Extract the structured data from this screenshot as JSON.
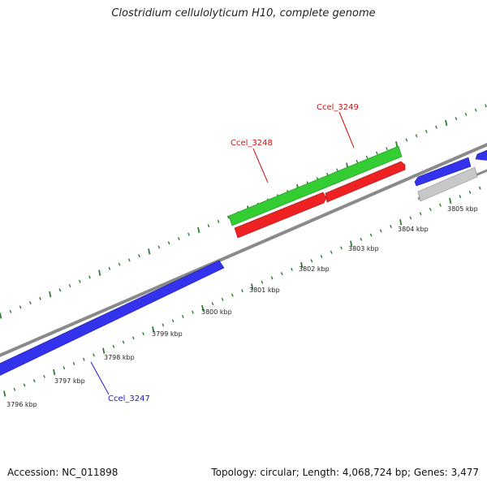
{
  "title": "Clostridium cellulolyticum H10, complete genome",
  "footer": {
    "accession": "Accession: NC_011898",
    "summary": "Topology: circular; Length: 4,068,724 bp; Genes: 3,477"
  },
  "colors": {
    "forward_gene": "#3333ee",
    "reverse_gene": "#ee2222",
    "rna_gene": "#33cc33",
    "other_gene": "#c8c8c8",
    "backbone": "#8a8a8a",
    "tick": "#2e7d32",
    "label_blue": "#1a1acc",
    "label_red": "#cc1111"
  },
  "axis_ticks": [
    {
      "kbp": 3796,
      "label": "3796 kbp"
    },
    {
      "kbp": 3797,
      "label": "3797 kbp"
    },
    {
      "kbp": 3798,
      "label": "3798 kbp"
    },
    {
      "kbp": 3799,
      "label": "3799 kbp"
    },
    {
      "kbp": 3800,
      "label": "3800 kbp"
    },
    {
      "kbp": 3801,
      "label": "3801 kbp"
    },
    {
      "kbp": 3802,
      "label": "3802 kbp"
    },
    {
      "kbp": 3803,
      "label": "3803 kbp"
    },
    {
      "kbp": 3804,
      "label": "3804 kbp"
    },
    {
      "kbp": 3805,
      "label": "3805 kbp"
    }
  ],
  "gene_labels": [
    {
      "id": "ccel-3247",
      "text": "Ccel_3247",
      "color": "#1a1acc"
    },
    {
      "id": "ccel-3248",
      "text": "Ccel_3248",
      "color": "#cc1111"
    },
    {
      "id": "ccel-3249",
      "text": "Ccel_3249",
      "color": "#cc1111"
    }
  ]
}
